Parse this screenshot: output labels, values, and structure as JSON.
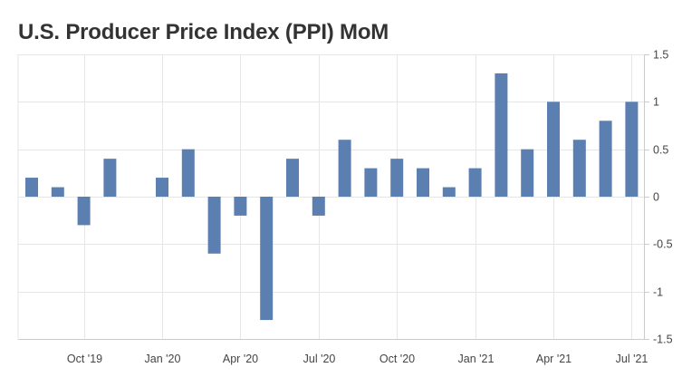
{
  "chart_data": {
    "type": "bar",
    "title": "U.S. Producer Price Index (PPI) MoM",
    "xlabel": "",
    "ylabel": "",
    "ylim": [
      -1.5,
      1.5
    ],
    "y_ticks": [
      1.5,
      1,
      0.5,
      0,
      -0.5,
      -1,
      -1.5
    ],
    "y_axis_position": "right",
    "grid": true,
    "categories": [
      "Aug '19",
      "Sep '19",
      "Oct '19",
      "Nov '19",
      "Dec '19",
      "Jan '20",
      "Feb '20",
      "Mar '20",
      "Apr '20",
      "May '20",
      "Jun '20",
      "Jul '20",
      "Aug '20",
      "Sep '20",
      "Oct '20",
      "Nov '20",
      "Dec '20",
      "Jan '21",
      "Feb '21",
      "Mar '21",
      "Apr '21",
      "May '21",
      "Jun '21",
      "Jul '21"
    ],
    "x_tick_labels": [
      {
        "label": "Oct '19",
        "category": "Oct '19"
      },
      {
        "label": "Jan '20",
        "category": "Jan '20"
      },
      {
        "label": "Apr '20",
        "category": "Apr '20"
      },
      {
        "label": "Jul '20",
        "category": "Jul '20"
      },
      {
        "label": "Oct '20",
        "category": "Oct '20"
      },
      {
        "label": "Jan '21",
        "category": "Jan '21"
      },
      {
        "label": "Apr '21",
        "category": "Apr '21"
      },
      {
        "label": "Jul '21",
        "category": "Jul '21"
      }
    ],
    "values": [
      0.2,
      0.1,
      -0.3,
      0.4,
      0,
      0.2,
      0.5,
      -0.6,
      -0.2,
      -1.3,
      0.4,
      -0.2,
      0.6,
      0.3,
      0.4,
      0.3,
      0.1,
      0.3,
      1.3,
      0.5,
      1.0,
      0.6,
      0.8,
      1.0
    ],
    "bar_color": "#5b7fb0",
    "grid_color": "#e6e6e6",
    "axis_color": "#cccccc"
  }
}
